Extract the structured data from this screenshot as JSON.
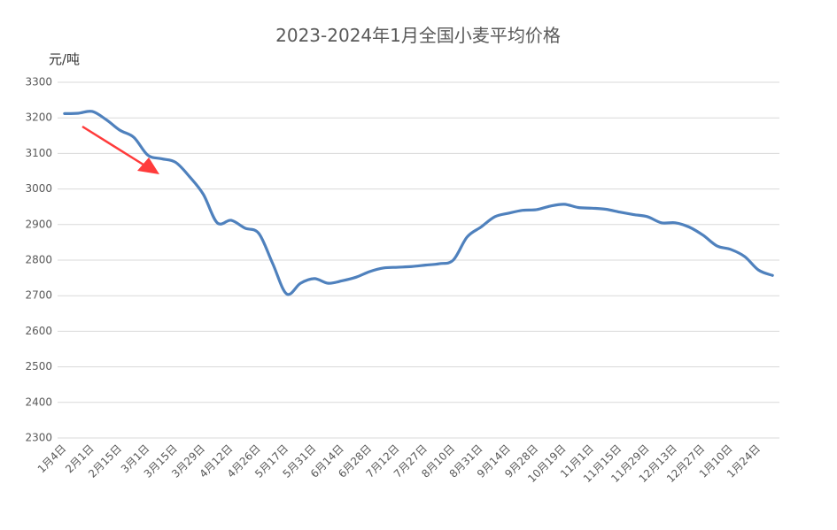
{
  "chart_data": {
    "type": "line",
    "title": "2023-2024年1月全国小麦平均价格",
    "y_label": "元/吨",
    "categories": [
      "1月4日",
      null,
      "2月1日",
      null,
      "2月15日",
      null,
      "3月1日",
      null,
      "3月15日",
      null,
      "3月29日",
      null,
      "4月12日",
      null,
      "4月26日",
      null,
      "5月17日",
      null,
      "5月31日",
      null,
      "6月14日",
      null,
      "6月28日",
      null,
      "7月12日",
      null,
      "7月27日",
      null,
      "8月10日",
      null,
      "8月31日",
      null,
      "9月14日",
      null,
      "9月28日",
      null,
      "10月19日",
      null,
      "11月1日",
      null,
      "11月15日",
      null,
      "11月29日",
      null,
      "12月13日",
      null,
      "12月27日",
      null,
      "1月10日",
      null,
      "1月24日",
      null
    ],
    "series": [
      {
        "color": "#4f81bd",
        "values": [
          3212,
          3213,
          3218,
          3195,
          3165,
          3145,
          3095,
          3085,
          3075,
          3035,
          2985,
          2905,
          2912,
          2890,
          2875,
          2790,
          2705,
          2735,
          2748,
          2735,
          2742,
          2752,
          2768,
          2778,
          2780,
          2782,
          2786,
          2790,
          2800,
          2865,
          2893,
          2922,
          2932,
          2940,
          2942,
          2952,
          2957,
          2948,
          2946,
          2943,
          2935,
          2928,
          2922,
          2905,
          2905,
          2893,
          2870,
          2840,
          2830,
          2810,
          2772,
          2757
        ]
      }
    ],
    "ylim": [
      2300,
      3300
    ],
    "yticks": [
      2300,
      2400,
      2500,
      2600,
      2700,
      2800,
      2900,
      3000,
      3100,
      3200,
      3300
    ],
    "grid": true
  }
}
